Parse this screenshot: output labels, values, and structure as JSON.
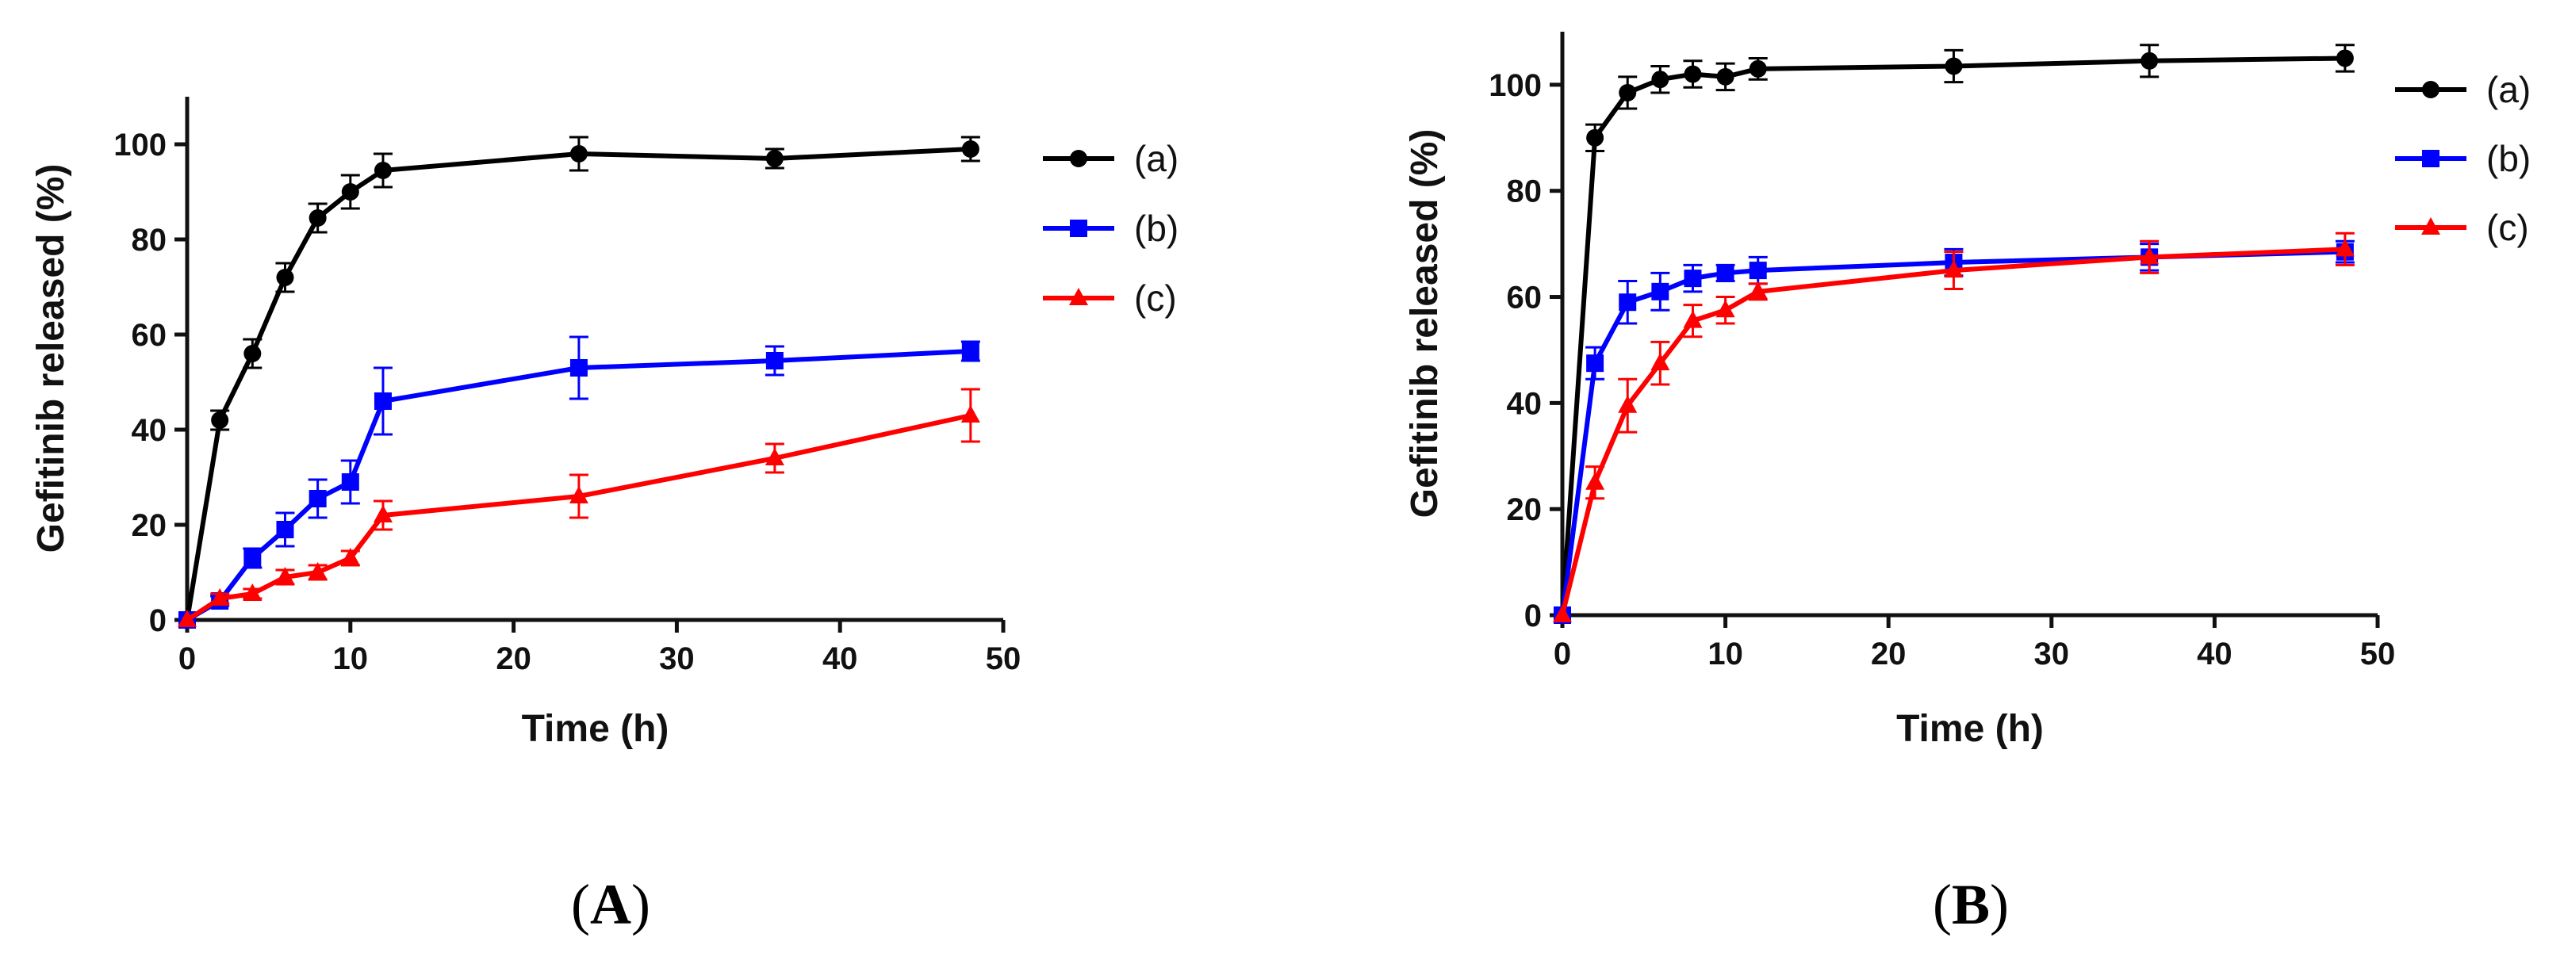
{
  "chart_data": [
    {
      "type": "line",
      "panel": "A",
      "panel_label_open": "(",
      "panel_label_letter": "A",
      "panel_label_close": ")",
      "xlabel": "Time (h)",
      "ylabel": "Gefitinib released (%)",
      "xlim": [
        0,
        50
      ],
      "ylim": [
        0,
        110
      ],
      "xticks": [
        0,
        10,
        20,
        30,
        40,
        50
      ],
      "yticks": [
        0,
        20,
        40,
        60,
        80,
        100
      ],
      "legend_position": "right",
      "x": [
        0,
        2,
        4,
        6,
        8,
        10,
        12,
        24,
        36,
        48
      ],
      "series": [
        {
          "name": "(a)",
          "color": "#000000",
          "marker": "circle",
          "values": [
            0,
            42,
            56,
            72,
            84.5,
            90,
            94.5,
            98,
            97,
            99
          ],
          "errors": [
            0,
            2,
            3,
            3,
            3,
            3.5,
            3.5,
            3.5,
            2,
            2.5
          ]
        },
        {
          "name": "(b)",
          "color": "#0000ff",
          "marker": "square",
          "values": [
            0,
            4,
            13,
            19,
            25.5,
            29,
            46,
            53,
            54.5,
            56.5
          ],
          "errors": [
            0,
            1,
            2,
            3.5,
            4,
            4.5,
            7,
            6.5,
            3,
            2
          ]
        },
        {
          "name": "(c)",
          "color": "#ff0000",
          "marker": "triangle",
          "values": [
            0,
            4.5,
            5.5,
            9,
            10,
            13,
            22,
            26,
            34,
            43
          ],
          "errors": [
            0,
            1,
            1,
            1.5,
            1.5,
            1.5,
            3,
            4.5,
            3,
            5.5
          ]
        }
      ]
    },
    {
      "type": "line",
      "panel": "B",
      "panel_label_open": "(",
      "panel_label_letter": "B",
      "panel_label_close": ")",
      "xlabel": "Time (h)",
      "ylabel": "Gefitinib released (%)",
      "xlim": [
        0,
        50
      ],
      "ylim": [
        0,
        110
      ],
      "xticks": [
        0,
        10,
        20,
        30,
        40,
        50
      ],
      "yticks": [
        0,
        20,
        40,
        60,
        80,
        100
      ],
      "legend_position": "right",
      "x": [
        0,
        2,
        4,
        6,
        8,
        10,
        12,
        24,
        36,
        48
      ],
      "series": [
        {
          "name": "(a)",
          "color": "#000000",
          "marker": "circle",
          "values": [
            0,
            90,
            98.5,
            101,
            102,
            101.5,
            103,
            103.5,
            104.5,
            105
          ],
          "errors": [
            0,
            2.5,
            3,
            2.5,
            2.5,
            2.5,
            2,
            3,
            3,
            2.5
          ]
        },
        {
          "name": "(b)",
          "color": "#0000ff",
          "marker": "square",
          "values": [
            0,
            47.5,
            59,
            61,
            63.5,
            64.5,
            65,
            66.5,
            67.5,
            68.5
          ],
          "errors": [
            0,
            3,
            4,
            3.5,
            2.5,
            1.5,
            2.5,
            2.5,
            2.5,
            2
          ]
        },
        {
          "name": "(c)",
          "color": "#ff0000",
          "marker": "triangle",
          "values": [
            0,
            25,
            39.5,
            47.5,
            55.5,
            57.5,
            61,
            65,
            67.5,
            69
          ],
          "errors": [
            0,
            3,
            5,
            4,
            3,
            2.5,
            1.5,
            3.5,
            3,
            3
          ]
        }
      ]
    }
  ]
}
